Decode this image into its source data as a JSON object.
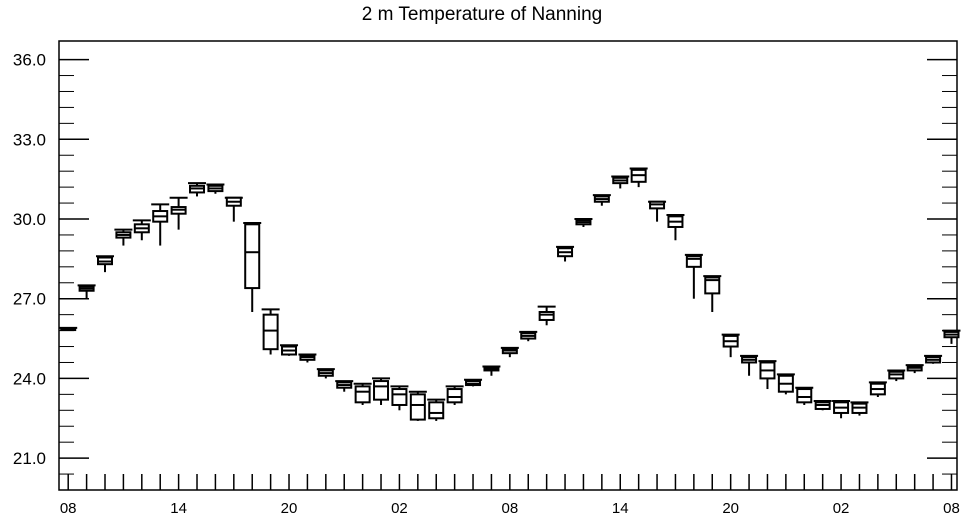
{
  "chart_data": {
    "type": "box",
    "title": "2 m Temperature of Nanning",
    "xlabel": "",
    "ylabel": "",
    "ylim": [
      19.8,
      36.7
    ],
    "yticks": [
      "36.0",
      "33.0",
      "30.0",
      "27.0",
      "24.0",
      "21.0"
    ],
    "ytick_values": [
      36.0,
      33.0,
      30.0,
      27.0,
      24.0,
      21.0
    ],
    "xtick_labels": [
      "08",
      "14",
      "20",
      "02",
      "08",
      "14",
      "20",
      "02",
      "08"
    ],
    "xtick_hours": [
      0,
      6,
      12,
      18,
      24,
      30,
      36,
      42,
      48
    ],
    "xlim": [
      -0.5,
      48.3
    ],
    "grid": false,
    "boxes": [
      {
        "x": 0,
        "min": 25.8,
        "q1": 25.82,
        "median": 25.85,
        "q3": 25.88,
        "max": 25.9
      },
      {
        "x": 1,
        "min": 27.0,
        "q1": 27.3,
        "median": 27.38,
        "q3": 27.45,
        "max": 27.5
      },
      {
        "x": 2,
        "min": 28.0,
        "q1": 28.3,
        "median": 28.4,
        "q3": 28.55,
        "max": 28.6
      },
      {
        "x": 3,
        "min": 29.0,
        "q1": 29.3,
        "median": 29.4,
        "q3": 29.5,
        "max": 29.6
      },
      {
        "x": 4,
        "min": 29.2,
        "q1": 29.5,
        "median": 29.65,
        "q3": 29.8,
        "max": 29.95
      },
      {
        "x": 5,
        "min": 29.0,
        "q1": 29.9,
        "median": 30.1,
        "q3": 30.3,
        "max": 30.55
      },
      {
        "x": 6,
        "min": 29.6,
        "q1": 30.2,
        "median": 30.35,
        "q3": 30.45,
        "max": 30.8
      },
      {
        "x": 7,
        "min": 30.85,
        "q1": 31.0,
        "median": 31.15,
        "q3": 31.25,
        "max": 31.35
      },
      {
        "x": 8,
        "min": 30.95,
        "q1": 31.05,
        "median": 31.15,
        "q3": 31.25,
        "max": 31.3
      },
      {
        "x": 9,
        "min": 29.9,
        "q1": 30.5,
        "median": 30.65,
        "q3": 30.8,
        "max": 30.8
      },
      {
        "x": 10,
        "min": 26.5,
        "q1": 27.4,
        "median": 28.75,
        "q3": 29.8,
        "max": 29.85
      },
      {
        "x": 11,
        "min": 24.9,
        "q1": 25.1,
        "median": 25.8,
        "q3": 26.4,
        "max": 26.6
      },
      {
        "x": 12,
        "min": 24.85,
        "q1": 24.9,
        "median": 25.05,
        "q3": 25.2,
        "max": 25.25
      },
      {
        "x": 13,
        "min": 24.6,
        "q1": 24.7,
        "median": 24.8,
        "q3": 24.85,
        "max": 24.9
      },
      {
        "x": 14,
        "min": 24.0,
        "q1": 24.1,
        "median": 24.2,
        "q3": 24.3,
        "max": 24.35
      },
      {
        "x": 15,
        "min": 23.5,
        "q1": 23.65,
        "median": 23.75,
        "q3": 23.85,
        "max": 23.9
      },
      {
        "x": 16,
        "min": 23.0,
        "q1": 23.1,
        "median": 23.5,
        "q3": 23.7,
        "max": 23.8
      },
      {
        "x": 17,
        "min": 23.0,
        "q1": 23.2,
        "median": 23.7,
        "q3": 23.9,
        "max": 24.0
      },
      {
        "x": 18,
        "min": 22.8,
        "q1": 23.0,
        "median": 23.4,
        "q3": 23.6,
        "max": 23.7
      },
      {
        "x": 19,
        "min": 22.4,
        "q1": 22.45,
        "median": 23.0,
        "q3": 23.4,
        "max": 23.5
      },
      {
        "x": 20,
        "min": 22.4,
        "q1": 22.5,
        "median": 22.7,
        "q3": 23.1,
        "max": 23.2
      },
      {
        "x": 21,
        "min": 23.0,
        "q1": 23.1,
        "median": 23.3,
        "q3": 23.6,
        "max": 23.7
      },
      {
        "x": 22,
        "min": 23.7,
        "q1": 23.75,
        "median": 23.8,
        "q3": 23.9,
        "max": 23.95
      },
      {
        "x": 23,
        "min": 24.1,
        "q1": 24.3,
        "median": 24.35,
        "q3": 24.4,
        "max": 24.45
      },
      {
        "x": 24,
        "min": 24.8,
        "q1": 24.95,
        "median": 25.05,
        "q3": 25.1,
        "max": 25.15
      },
      {
        "x": 25,
        "min": 25.4,
        "q1": 25.5,
        "median": 25.6,
        "q3": 25.7,
        "max": 25.75
      },
      {
        "x": 26,
        "min": 26.0,
        "q1": 26.2,
        "median": 26.4,
        "q3": 26.5,
        "max": 26.7
      },
      {
        "x": 27,
        "min": 28.4,
        "q1": 28.6,
        "median": 28.75,
        "q3": 28.9,
        "max": 28.95
      },
      {
        "x": 28,
        "min": 29.7,
        "q1": 29.8,
        "median": 29.88,
        "q3": 29.95,
        "max": 30.0
      },
      {
        "x": 29,
        "min": 30.5,
        "q1": 30.65,
        "median": 30.75,
        "q3": 30.85,
        "max": 30.9
      },
      {
        "x": 30,
        "min": 31.15,
        "q1": 31.35,
        "median": 31.45,
        "q3": 31.55,
        "max": 31.6
      },
      {
        "x": 31,
        "min": 31.2,
        "q1": 31.4,
        "median": 31.65,
        "q3": 31.85,
        "max": 31.9
      },
      {
        "x": 32,
        "min": 29.9,
        "q1": 30.4,
        "median": 30.55,
        "q3": 30.65,
        "max": 30.65
      },
      {
        "x": 33,
        "min": 29.2,
        "q1": 29.7,
        "median": 29.9,
        "q3": 30.1,
        "max": 30.15
      },
      {
        "x": 34,
        "min": 27.0,
        "q1": 28.2,
        "median": 28.5,
        "q3": 28.6,
        "max": 28.65
      },
      {
        "x": 35,
        "min": 26.5,
        "q1": 27.2,
        "median": 27.7,
        "q3": 27.8,
        "max": 27.85
      },
      {
        "x": 36,
        "min": 24.8,
        "q1": 25.2,
        "median": 25.4,
        "q3": 25.6,
        "max": 25.65
      },
      {
        "x": 37,
        "min": 24.1,
        "q1": 24.6,
        "median": 24.7,
        "q3": 24.8,
        "max": 24.85
      },
      {
        "x": 38,
        "min": 23.6,
        "q1": 24.0,
        "median": 24.3,
        "q3": 24.6,
        "max": 24.65
      },
      {
        "x": 39,
        "min": 23.4,
        "q1": 23.5,
        "median": 23.8,
        "q3": 24.1,
        "max": 24.15
      },
      {
        "x": 40,
        "min": 23.0,
        "q1": 23.1,
        "median": 23.3,
        "q3": 23.6,
        "max": 23.65
      },
      {
        "x": 41,
        "min": 22.8,
        "q1": 22.85,
        "median": 23.0,
        "q3": 23.1,
        "max": 23.15
      },
      {
        "x": 42,
        "min": 22.5,
        "q1": 22.7,
        "median": 22.9,
        "q3": 23.1,
        "max": 23.15
      },
      {
        "x": 43,
        "min": 22.6,
        "q1": 22.7,
        "median": 22.9,
        "q3": 23.05,
        "max": 23.1
      },
      {
        "x": 44,
        "min": 23.3,
        "q1": 23.4,
        "median": 23.6,
        "q3": 23.8,
        "max": 23.85
      },
      {
        "x": 45,
        "min": 23.9,
        "q1": 24.0,
        "median": 24.15,
        "q3": 24.25,
        "max": 24.3
      },
      {
        "x": 46,
        "min": 24.2,
        "q1": 24.3,
        "median": 24.4,
        "q3": 24.45,
        "max": 24.5
      },
      {
        "x": 47,
        "min": 24.55,
        "q1": 24.6,
        "median": 24.7,
        "q3": 24.8,
        "max": 24.85
      },
      {
        "x": 48,
        "min": 25.3,
        "q1": 25.55,
        "median": 25.65,
        "q3": 25.75,
        "max": 25.8
      }
    ]
  }
}
